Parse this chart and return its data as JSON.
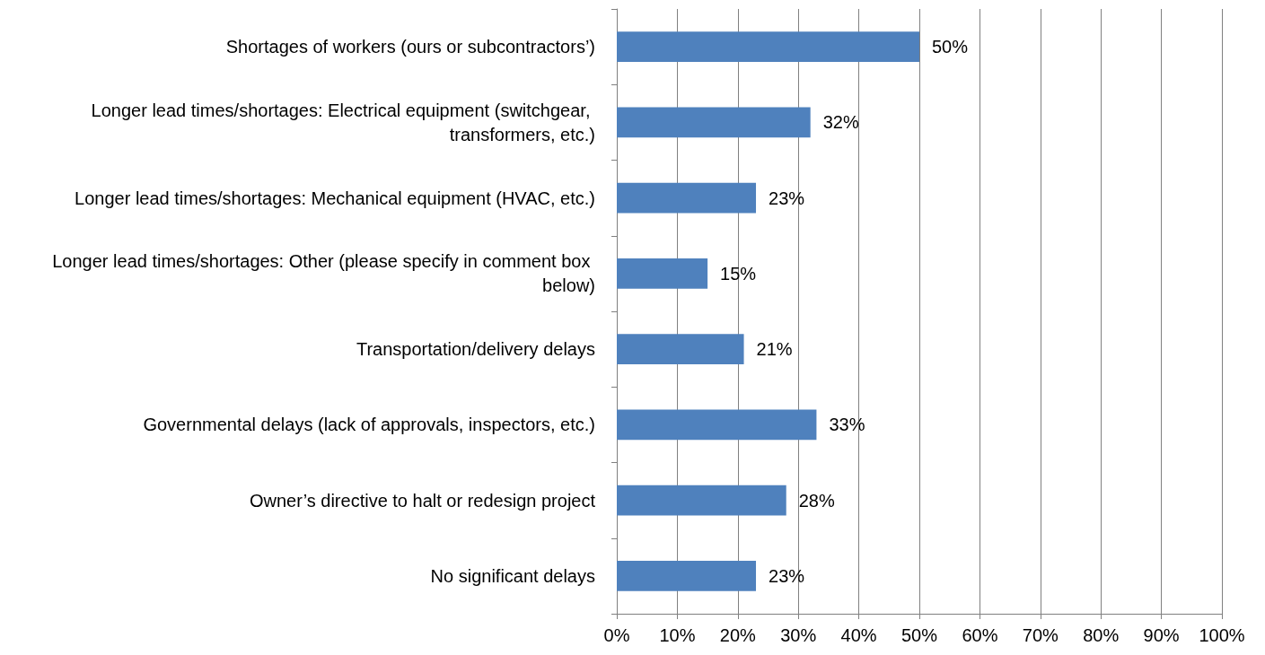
{
  "chart_data": {
    "type": "bar",
    "orientation": "horizontal",
    "categories": [
      "Shortages of workers (ours or subcontractors’)",
      "Longer lead times/shortages: Electrical equipment (switchgear, transformers, etc.)",
      "Longer lead times/shortages: Mechanical equipment (HVAC, etc.)",
      "Longer lead times/shortages: Other (please specify in comment box below)",
      "Transportation/delivery delays",
      "Governmental delays (lack of approvals, inspectors, etc.)",
      "Owner’s directive to halt or redesign project",
      "No significant delays"
    ],
    "values": [
      50,
      32,
      23,
      15,
      21,
      33,
      28,
      23
    ],
    "value_labels": [
      "50%",
      "32%",
      "23%",
      "15%",
      "21%",
      "33%",
      "28%",
      "23%"
    ],
    "color": "#4f81bd",
    "xlim": [
      0,
      100
    ],
    "xticks": [
      {
        "value": 0,
        "label": "0%"
      },
      {
        "value": 10,
        "label": "10%"
      },
      {
        "value": 20,
        "label": "20%"
      },
      {
        "value": 30,
        "label": "30%"
      },
      {
        "value": 40,
        "label": "40%"
      },
      {
        "value": 50,
        "label": "50%"
      },
      {
        "value": 60,
        "label": "60%"
      },
      {
        "value": 70,
        "label": "70%"
      },
      {
        "value": 80,
        "label": "80%"
      },
      {
        "value": 90,
        "label": "90%"
      },
      {
        "value": 100,
        "label": "100%"
      }
    ],
    "grid": "x"
  }
}
